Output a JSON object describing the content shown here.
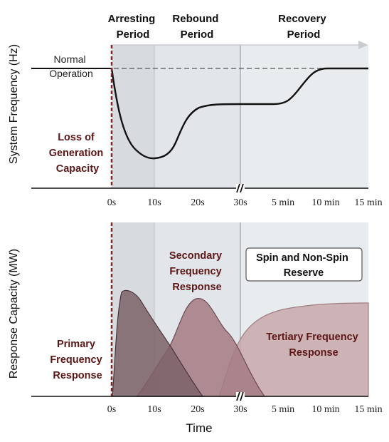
{
  "colors": {
    "panel_bg": "#e8ecee",
    "arresting_bg": "#d7dbdf",
    "rebound_bg": "#e2e6ea",
    "maroon": "#5c1616",
    "dashed_marker": "#7a2a2a",
    "primary_fill": "#7b6269",
    "secondary_fill": "#a47a82",
    "tertiary_fill": "#c9a9ac"
  },
  "top": {
    "ylabel": "System Frequency (Hz)",
    "periods": [
      {
        "lines": [
          "Arresting",
          "Period"
        ]
      },
      {
        "lines": [
          "Rebound",
          "Period"
        ]
      },
      {
        "lines": [
          "Recovery",
          "Period"
        ]
      }
    ],
    "normal_label": [
      "Normal",
      "Operation"
    ],
    "event_label": [
      "Loss of",
      "Generation",
      "Capacity"
    ]
  },
  "bottom": {
    "ylabel": "Response Capacity (MW)",
    "secondary_label": [
      "Secondary",
      "Frequency",
      "Response"
    ],
    "reserve_label": [
      "Spin and Non-Spin",
      "Reserve"
    ],
    "primary_label": [
      "Primary",
      "Frequency",
      "Response"
    ],
    "tertiary_label": [
      "Tertiary Frequency",
      "Response"
    ]
  },
  "x_ticks": [
    "0s",
    "10s",
    "20s",
    "30s",
    "5 min",
    "10 min",
    "15 min"
  ],
  "xlabel": "Time",
  "break_mark": "//"
}
